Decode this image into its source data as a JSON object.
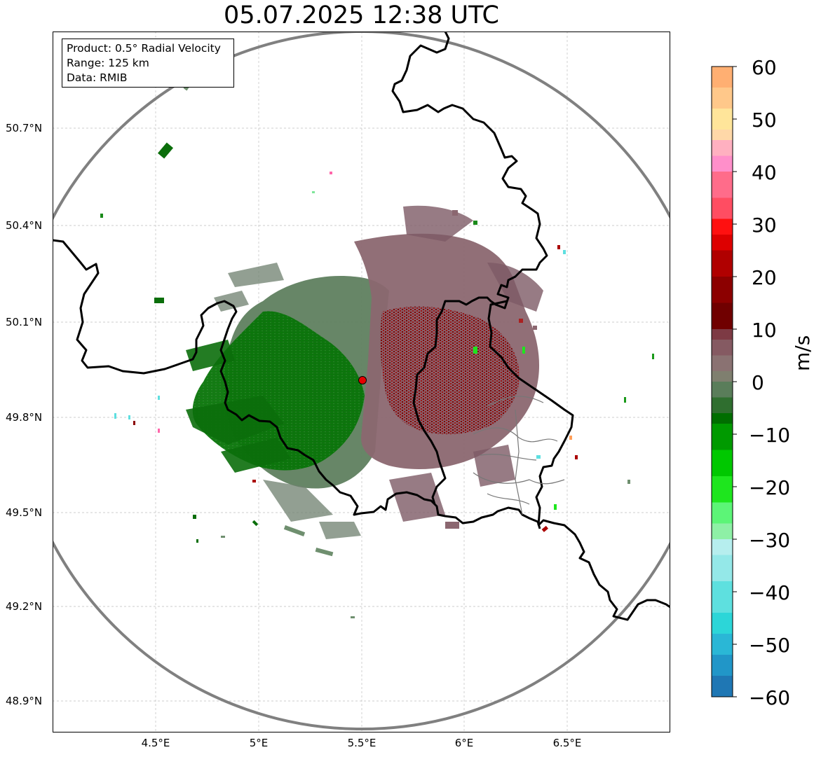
{
  "title": "05.07.2025 12:38 UTC",
  "info": {
    "product": "Product: 0.5° Radial Velocity",
    "range": "Range: 125 km",
    "data": "Data: RMIB"
  },
  "map": {
    "radar_site": {
      "lon": 5.5,
      "lat": 49.91,
      "label": ""
    },
    "range_ring_color": "#808080",
    "lat_ticks": [
      "50.7°N",
      "50.4°N",
      "50.1°N",
      "49.8°N",
      "49.5°N",
      "49.2°N",
      "48.9°N"
    ],
    "lon_ticks": [
      "4.5°E",
      "5°E",
      "5.5°E",
      "6°E",
      "6.5°E"
    ],
    "extent": {
      "lon_min": 4.0,
      "lon_max": 7.0,
      "lat_min": 48.8,
      "lat_max": 50.99
    }
  },
  "colorbar": {
    "unit": "m/s",
    "min": -60,
    "max": 60,
    "tick_labels": [
      "60",
      "50",
      "40",
      "30",
      "20",
      "10",
      "0",
      "−10",
      "−20",
      "−30",
      "−40",
      "−50",
      "−60"
    ],
    "stops": [
      {
        "v": -60,
        "color": "#1f77b4"
      },
      {
        "v": -56,
        "color": "#2196c8"
      },
      {
        "v": -52,
        "color": "#2ab7d6"
      },
      {
        "v": -48,
        "color": "#2cd6d8"
      },
      {
        "v": -44,
        "color": "#5ee0df"
      },
      {
        "v": -38,
        "color": "#94e8e8"
      },
      {
        "v": -33,
        "color": "#b6eeee"
      },
      {
        "v": -30,
        "color": "#8ef0a6"
      },
      {
        "v": -27,
        "color": "#5cf577"
      },
      {
        "v": -23,
        "color": "#1ee61e"
      },
      {
        "v": -18,
        "color": "#00c800"
      },
      {
        "v": -13,
        "color": "#009a00"
      },
      {
        "v": -8,
        "color": "#006e00"
      },
      {
        "v": -6,
        "color": "#2f6e2f"
      },
      {
        "v": -3,
        "color": "#5a7d5a"
      },
      {
        "v": 0,
        "color": "#7f7f6f"
      },
      {
        "v": 2,
        "color": "#8a7272"
      },
      {
        "v": 5,
        "color": "#855a62"
      },
      {
        "v": 8,
        "color": "#7d3a44"
      },
      {
        "v": 10,
        "color": "#700000"
      },
      {
        "v": 15,
        "color": "#8c0000"
      },
      {
        "v": 20,
        "color": "#b00000"
      },
      {
        "v": 25,
        "color": "#dd0000"
      },
      {
        "v": 28,
        "color": "#ff1010"
      },
      {
        "v": 31,
        "color": "#ff4d62"
      },
      {
        "v": 35,
        "color": "#ff6c8a"
      },
      {
        "v": 40,
        "color": "#ff8fca"
      },
      {
        "v": 43,
        "color": "#ffb0c0"
      },
      {
        "v": 46,
        "color": "#ffd8a8"
      },
      {
        "v": 48,
        "color": "#ffe59a"
      },
      {
        "v": 52,
        "color": "#ffc88a"
      },
      {
        "v": 56,
        "color": "#ffaf72"
      },
      {
        "v": 60,
        "color": "#ff9f5a"
      }
    ]
  }
}
